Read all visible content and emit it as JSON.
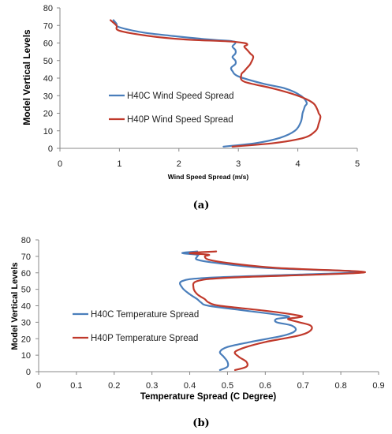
{
  "colors": {
    "blue": "#4a7ebb",
    "red": "#c0392b"
  },
  "chart_data": [
    {
      "type": "line",
      "caption": "(a)",
      "xlabel": "Wind Speed Spread (m/s)",
      "ylabel": "Model Vertical Levels",
      "xlim": [
        0,
        5
      ],
      "ylim": [
        0,
        80
      ],
      "xticks": [
        "0",
        "1",
        "2",
        "3",
        "4",
        "5"
      ],
      "yticks": [
        "0",
        "10",
        "20",
        "30",
        "40",
        "50",
        "60",
        "70",
        "80"
      ],
      "grid": false,
      "legend_position": "left-middle",
      "series": [
        {
          "name": "H40C Wind Speed Spread",
          "color": "#4a7ebb",
          "x": [
            2.75,
            3.3,
            3.7,
            3.95,
            4.05,
            4.08,
            4.1,
            4.12,
            4.15,
            4.05,
            3.8,
            3.4,
            3.0,
            2.9,
            2.88,
            2.95,
            2.95,
            2.9,
            2.95,
            2.95,
            2.9,
            2.95,
            2.9,
            2.5,
            1.9,
            1.4,
            1.0,
            0.95,
            0.9
          ],
          "y": [
            1,
            3,
            6,
            10,
            15,
            20,
            22,
            24,
            26,
            30,
            34,
            37,
            41,
            44,
            46,
            48,
            50,
            52,
            54,
            56,
            58,
            60,
            61,
            62,
            64,
            66,
            69,
            71,
            73
          ]
        },
        {
          "name": "H40P Wind Speed Spread",
          "color": "#c0392b",
          "x": [
            2.9,
            3.6,
            4.1,
            4.3,
            4.35,
            4.38,
            4.35,
            4.33,
            4.25,
            4.0,
            3.6,
            3.1,
            3.05,
            3.1,
            3.15,
            3.2,
            3.25,
            3.2,
            3.15,
            3.1,
            3.15,
            3.1,
            2.8,
            2.1,
            1.5,
            1.0,
            0.95,
            0.85
          ],
          "y": [
            1,
            3,
            6,
            10,
            14,
            18,
            20,
            22,
            26,
            30,
            34,
            38,
            42,
            44,
            46,
            48,
            52,
            54,
            56,
            58,
            59,
            60,
            61,
            62,
            64,
            67,
            70,
            73
          ]
        }
      ]
    },
    {
      "type": "line",
      "caption": "(b)",
      "xlabel": "Temperature Spread (C Degree)",
      "ylabel": "Model Vertical Levels",
      "xlim": [
        0,
        0.9
      ],
      "ylim": [
        0,
        80
      ],
      "xticks": [
        "0",
        "0.1",
        "0.2",
        "0.3",
        "0.4",
        "0.5",
        "0.6",
        "0.7",
        "0.8",
        "0.9"
      ],
      "yticks": [
        "0",
        "10",
        "20",
        "30",
        "40",
        "50",
        "60",
        "70",
        "80"
      ],
      "grid": false,
      "legend_position": "left-middle",
      "series": [
        {
          "name": "H40C Temperature Spread",
          "color": "#4a7ebb",
          "x": [
            0.48,
            0.5,
            0.5,
            0.49,
            0.48,
            0.5,
            0.56,
            0.65,
            0.68,
            0.67,
            0.63,
            0.63,
            0.66,
            0.65,
            0.55,
            0.45,
            0.43,
            0.42,
            0.4,
            0.38,
            0.38,
            0.45,
            0.7,
            0.82,
            0.83,
            0.6,
            0.47,
            0.42,
            0.42,
            0.42,
            0.38,
            0.42
          ],
          "y": [
            1,
            3,
            6,
            9,
            12,
            15,
            18,
            22,
            25,
            28,
            30,
            32,
            33,
            34,
            37,
            40,
            42,
            44,
            47,
            51,
            55,
            57,
            59,
            60,
            61,
            63,
            66,
            68,
            70,
            71,
            72,
            73
          ]
        },
        {
          "name": "H40P Temperature Spread",
          "color": "#c0392b",
          "x": [
            0.52,
            0.55,
            0.55,
            0.53,
            0.52,
            0.55,
            0.6,
            0.69,
            0.72,
            0.72,
            0.69,
            0.66,
            0.69,
            0.69,
            0.6,
            0.48,
            0.45,
            0.44,
            0.42,
            0.41,
            0.42,
            0.5,
            0.75,
            0.85,
            0.84,
            0.63,
            0.5,
            0.45,
            0.44,
            0.45,
            0.4,
            0.47
          ],
          "y": [
            1,
            3,
            6,
            9,
            12,
            15,
            18,
            22,
            25,
            28,
            30,
            32,
            33,
            34,
            37,
            40,
            42,
            44,
            47,
            51,
            55,
            57,
            59,
            60,
            61,
            63,
            66,
            68,
            70,
            71,
            72,
            73
          ]
        }
      ]
    }
  ]
}
